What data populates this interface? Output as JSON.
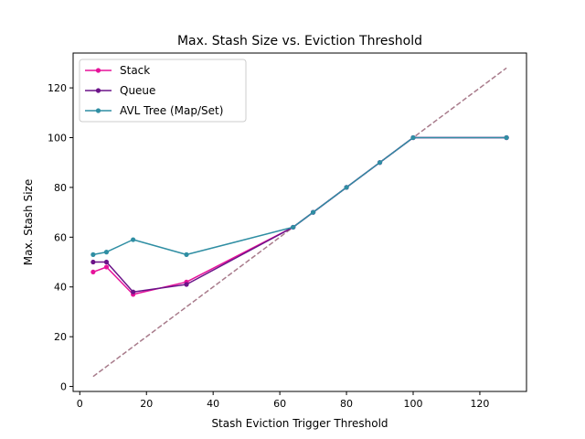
{
  "chart_data": {
    "type": "line",
    "title": "Max. Stash Size vs. Eviction Threshold",
    "xlabel": "Stash Eviction Trigger Threshold",
    "ylabel": "Max. Stash Size",
    "xlim": [
      -2,
      134
    ],
    "ylim": [
      -2,
      134
    ],
    "xticks": [
      0,
      20,
      40,
      60,
      80,
      100,
      120
    ],
    "yticks": [
      0,
      20,
      40,
      60,
      80,
      100,
      120
    ],
    "grid": false,
    "legend_position": "upper-left",
    "series": [
      {
        "name": "Stack",
        "color": "#e6129a",
        "x": [
          4,
          8,
          16,
          32,
          64,
          70,
          80,
          90,
          100,
          128
        ],
        "y": [
          46,
          48,
          37,
          42,
          64,
          70,
          80,
          90,
          100,
          100
        ]
      },
      {
        "name": "Queue",
        "color": "#6c1389",
        "x": [
          4,
          8,
          16,
          32,
          64,
          70,
          80,
          90,
          100,
          128
        ],
        "y": [
          50,
          50,
          38,
          41,
          64,
          70,
          80,
          90,
          100,
          100
        ]
      },
      {
        "name": "AVL Tree (Map/Set)",
        "color": "#2f8ea3",
        "x": [
          4,
          8,
          16,
          32,
          64,
          70,
          80,
          90,
          100,
          128
        ],
        "y": [
          53,
          54,
          59,
          53,
          64,
          70,
          80,
          90,
          100,
          100
        ]
      }
    ],
    "reference_line": {
      "style": "dashed",
      "color": "#a87b8b",
      "x": [
        4,
        128
      ],
      "y": [
        4,
        128
      ]
    }
  }
}
